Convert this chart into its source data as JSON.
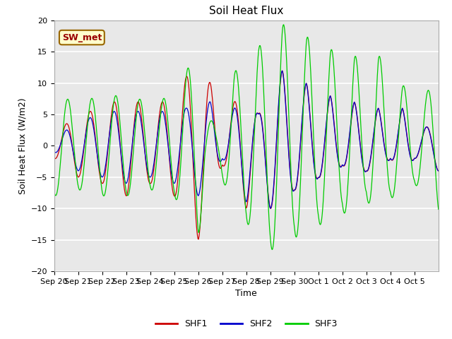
{
  "title": "Soil Heat Flux",
  "xlabel": "Time",
  "ylabel": "Soil Heat Flux (W/m2)",
  "ylim": [
    -20,
    20
  ],
  "yticks": [
    -20,
    -15,
    -10,
    -5,
    0,
    5,
    10,
    15,
    20
  ],
  "xtick_labels": [
    "Sep 20",
    "Sep 21",
    "Sep 22",
    "Sep 23",
    "Sep 24",
    "Sep 25",
    "Sep 26",
    "Sep 27",
    "Sep 28",
    "Sep 29",
    "Sep 30",
    "Oct 1",
    "Oct 2",
    "Oct 3",
    "Oct 4",
    "Oct 5"
  ],
  "legend_labels": [
    "SHF1",
    "SHF2",
    "SHF3"
  ],
  "line_colors": [
    "#cc0000",
    "#0000cc",
    "#00cc00"
  ],
  "annotation_text": "SW_met",
  "annotation_box_color": "#ffffcc",
  "annotation_text_color": "#990000",
  "annotation_border_color": "#996600",
  "fig_bg_color": "#ffffff",
  "plot_bg_color": "#e8e8e8",
  "grid_color": "#ffffff",
  "title_fontsize": 11,
  "axis_label_fontsize": 9,
  "tick_label_fontsize": 8
}
